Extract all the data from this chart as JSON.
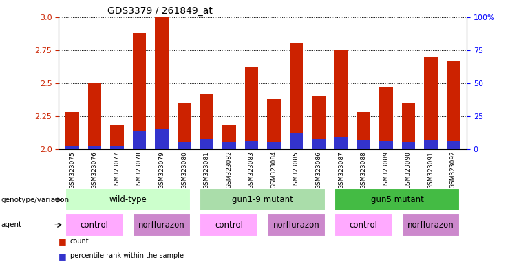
{
  "title": "GDS3379 / 261849_at",
  "samples": [
    "GSM323075",
    "GSM323076",
    "GSM323077",
    "GSM323078",
    "GSM323079",
    "GSM323080",
    "GSM323081",
    "GSM323082",
    "GSM323083",
    "GSM323084",
    "GSM323085",
    "GSM323086",
    "GSM323087",
    "GSM323088",
    "GSM323089",
    "GSM323090",
    "GSM323091",
    "GSM323092"
  ],
  "counts": [
    2.28,
    2.5,
    2.18,
    2.88,
    3.0,
    2.35,
    2.42,
    2.18,
    2.62,
    2.38,
    2.8,
    2.4,
    2.75,
    2.28,
    2.47,
    2.35,
    2.7,
    2.67
  ],
  "percentile_ranks": [
    2,
    2,
    2,
    14,
    15,
    5,
    8,
    5,
    6,
    5,
    12,
    8,
    9,
    7,
    6,
    5,
    7,
    6
  ],
  "ylim_left": [
    2.0,
    3.0
  ],
  "ylim_right": [
    0,
    100
  ],
  "yticks_left": [
    2.0,
    2.25,
    2.5,
    2.75,
    3.0
  ],
  "yticks_right": [
    0,
    25,
    50,
    75,
    100
  ],
  "bar_width": 0.6,
  "count_color": "#CC2200",
  "percentile_color": "#3333CC",
  "baseline": 2.0,
  "geno_groups": [
    {
      "label": "wild-type",
      "start": 0,
      "end": 5,
      "color": "#CCFFCC"
    },
    {
      "label": "gun1-9 mutant",
      "start": 6,
      "end": 11,
      "color": "#AADDAA"
    },
    {
      "label": "gun5 mutant",
      "start": 12,
      "end": 17,
      "color": "#44BB44"
    }
  ],
  "agent_groups": [
    {
      "label": "control",
      "start": 0,
      "end": 2,
      "color": "#FFAAFF"
    },
    {
      "label": "norflurazon",
      "start": 3,
      "end": 5,
      "color": "#CC88CC"
    },
    {
      "label": "control",
      "start": 6,
      "end": 8,
      "color": "#FFAAFF"
    },
    {
      "label": "norflurazon",
      "start": 9,
      "end": 11,
      "color": "#CC88CC"
    },
    {
      "label": "control",
      "start": 12,
      "end": 14,
      "color": "#FFAAFF"
    },
    {
      "label": "norflurazon",
      "start": 15,
      "end": 17,
      "color": "#CC88CC"
    }
  ],
  "tick_label_fontsize": 6.5,
  "title_fontsize": 10,
  "row_label_fontsize": 7.5,
  "group_label_fontsize": 8.5
}
